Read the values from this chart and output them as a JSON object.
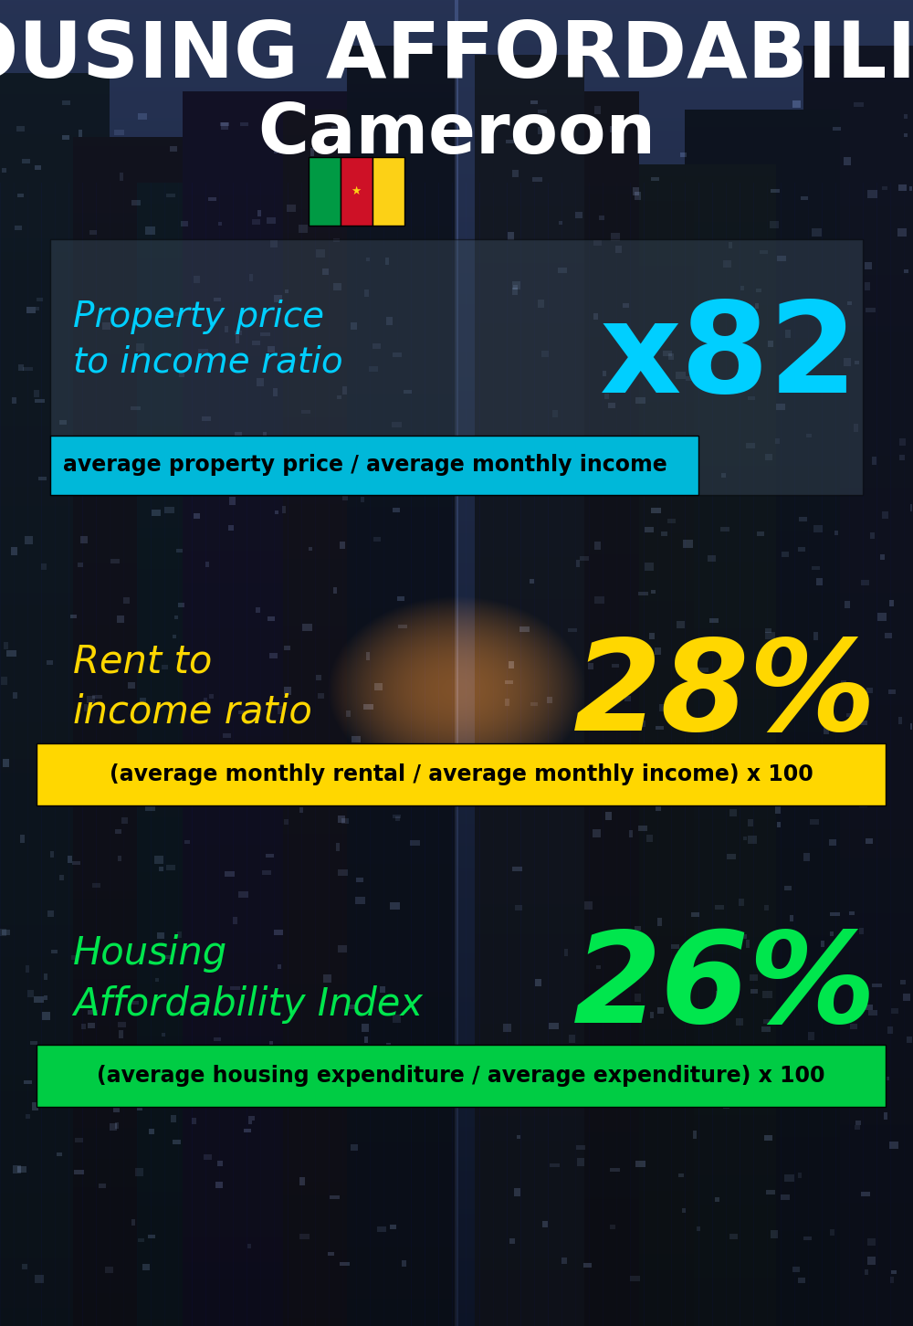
{
  "title_line1": "HOUSING AFFORDABILITY",
  "title_line2": "Cameroon",
  "bg_color": "#0a1520",
  "section1_label": "Property price\nto income ratio",
  "section1_value": "x82",
  "section1_label_color": "#00cfff",
  "section1_value_color": "#00cfff",
  "section1_formula": "average property price / average monthly income",
  "section1_formula_bg": "#00b8d9",
  "section2_label": "Rent to\nincome ratio",
  "section2_value": "28%",
  "section2_label_color": "#ffd700",
  "section2_value_color": "#ffd700",
  "section2_formula": "(average monthly rental / average monthly income) x 100",
  "section2_formula_bg": "#ffd700",
  "section3_label": "Housing\nAffordability Index",
  "section3_value": "26%",
  "section3_label_color": "#00e64d",
  "section3_value_color": "#00e64d",
  "section3_formula": "(average housing expenditure / average expenditure) x 100",
  "section3_formula_bg": "#00cc44",
  "flag_green": "#009a44",
  "flag_red": "#ce1126",
  "flag_yellow": "#fcd116",
  "title_color": "#ffffff",
  "country_color": "#ffffff",
  "formula_text_color": "#000000"
}
